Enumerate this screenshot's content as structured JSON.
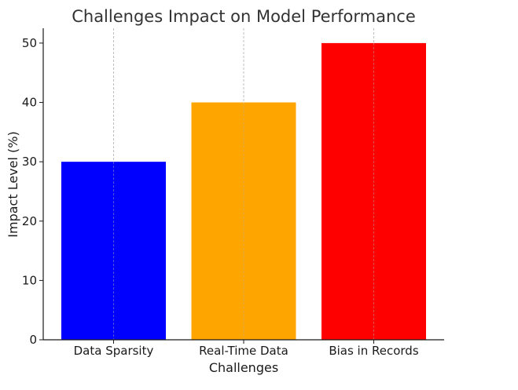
{
  "chart_data": {
    "type": "bar",
    "title": "Challenges Impact on Model Performance",
    "xlabel": "Challenges",
    "ylabel": "Impact Level (%)",
    "categories": [
      "Data Sparsity",
      "Real-Time Data",
      "Bias in Records"
    ],
    "values": [
      30,
      40,
      50
    ],
    "colors": [
      "#0000ff",
      "#ffa500",
      "#ff0000"
    ],
    "ylim": [
      0,
      52.5
    ],
    "yticks": [
      0,
      10,
      20,
      30,
      40,
      50
    ],
    "grid": "vertical gridlines (x-axis only)",
    "legend": "none"
  }
}
